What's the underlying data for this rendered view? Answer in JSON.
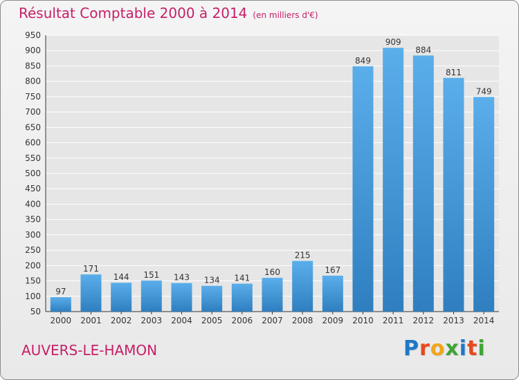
{
  "title": "Résultat Comptable 2000 à 2014",
  "subtitle": "(en milliers d'€)",
  "commune": "AUVERS-LE-HAMON",
  "logo": {
    "text": "Proxiti",
    "colors": [
      "#1e78c8",
      "#e8481c",
      "#f2a51a",
      "#3fa535",
      "#1e78c8",
      "#e8481c",
      "#3fa535"
    ]
  },
  "colors": {
    "bar": "#4a9fe0",
    "bar_dark": "#2f7fc0",
    "title": "#c51f68",
    "grid": "#ffffff"
  },
  "chart_data": {
    "type": "bar",
    "title": "Résultat Comptable 2000 à 2014",
    "subtitle": "(en milliers d'€)",
    "categories": [
      "2000",
      "2001",
      "2002",
      "2003",
      "2004",
      "2005",
      "2006",
      "2007",
      "2008",
      "2009",
      "2010",
      "2011",
      "2012",
      "2013",
      "2014"
    ],
    "values": [
      97,
      171,
      144,
      151,
      143,
      134,
      141,
      160,
      215,
      167,
      849,
      909,
      884,
      811,
      749
    ],
    "ylim": [
      50,
      950
    ],
    "yticks": [
      50,
      100,
      150,
      200,
      250,
      300,
      350,
      400,
      450,
      500,
      550,
      600,
      650,
      700,
      750,
      800,
      850,
      900,
      950
    ],
    "grid": true
  }
}
